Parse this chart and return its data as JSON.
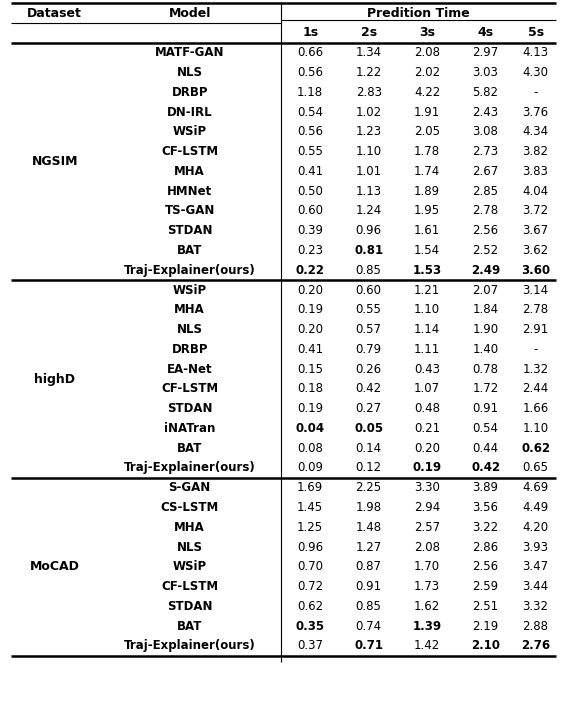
{
  "title": "Predition Time",
  "col_headers": [
    "1s",
    "2s",
    "3s",
    "4s",
    "5s"
  ],
  "datasets": [
    {
      "name": "NGSIM",
      "rows": [
        {
          "model": "MATF-GAN",
          "vals": [
            "0.66",
            "1.34",
            "2.08",
            "2.97",
            "4.13"
          ],
          "bold": [
            false,
            false,
            false,
            false,
            false
          ]
        },
        {
          "model": "NLS",
          "vals": [
            "0.56",
            "1.22",
            "2.02",
            "3.03",
            "4.30"
          ],
          "bold": [
            false,
            false,
            false,
            false,
            false
          ]
        },
        {
          "model": "DRBP",
          "vals": [
            "1.18",
            "2.83",
            "4.22",
            "5.82",
            "-"
          ],
          "bold": [
            false,
            false,
            false,
            false,
            false
          ]
        },
        {
          "model": "DN-IRL",
          "vals": [
            "0.54",
            "1.02",
            "1.91",
            "2.43",
            "3.76"
          ],
          "bold": [
            false,
            false,
            false,
            false,
            false
          ]
        },
        {
          "model": "WSiP",
          "vals": [
            "0.56",
            "1.23",
            "2.05",
            "3.08",
            "4.34"
          ],
          "bold": [
            false,
            false,
            false,
            false,
            false
          ]
        },
        {
          "model": "CF-LSTM",
          "vals": [
            "0.55",
            "1.10",
            "1.78",
            "2.73",
            "3.82"
          ],
          "bold": [
            false,
            false,
            false,
            false,
            false
          ]
        },
        {
          "model": "MHA",
          "vals": [
            "0.41",
            "1.01",
            "1.74",
            "2.67",
            "3.83"
          ],
          "bold": [
            false,
            false,
            false,
            false,
            false
          ]
        },
        {
          "model": "HMNet",
          "vals": [
            "0.50",
            "1.13",
            "1.89",
            "2.85",
            "4.04"
          ],
          "bold": [
            false,
            false,
            false,
            false,
            false
          ]
        },
        {
          "model": "TS-GAN",
          "vals": [
            "0.60",
            "1.24",
            "1.95",
            "2.78",
            "3.72"
          ],
          "bold": [
            false,
            false,
            false,
            false,
            false
          ]
        },
        {
          "model": "STDAN",
          "vals": [
            "0.39",
            "0.96",
            "1.61",
            "2.56",
            "3.67"
          ],
          "bold": [
            false,
            false,
            false,
            false,
            false
          ]
        },
        {
          "model": "BAT",
          "vals": [
            "0.23",
            "0.81",
            "1.54",
            "2.52",
            "3.62"
          ],
          "bold": [
            false,
            true,
            false,
            false,
            false
          ]
        },
        {
          "model": "Traj-Explainer(ours)",
          "vals": [
            "0.22",
            "0.85",
            "1.53",
            "2.49",
            "3.60"
          ],
          "bold": [
            true,
            false,
            true,
            true,
            true
          ]
        }
      ]
    },
    {
      "name": "highD",
      "rows": [
        {
          "model": "WSiP",
          "vals": [
            "0.20",
            "0.60",
            "1.21",
            "2.07",
            "3.14"
          ],
          "bold": [
            false,
            false,
            false,
            false,
            false
          ]
        },
        {
          "model": "MHA",
          "vals": [
            "0.19",
            "0.55",
            "1.10",
            "1.84",
            "2.78"
          ],
          "bold": [
            false,
            false,
            false,
            false,
            false
          ]
        },
        {
          "model": "NLS",
          "vals": [
            "0.20",
            "0.57",
            "1.14",
            "1.90",
            "2.91"
          ],
          "bold": [
            false,
            false,
            false,
            false,
            false
          ]
        },
        {
          "model": "DRBP",
          "vals": [
            "0.41",
            "0.79",
            "1.11",
            "1.40",
            "-"
          ],
          "bold": [
            false,
            false,
            false,
            false,
            false
          ]
        },
        {
          "model": "EA-Net",
          "vals": [
            "0.15",
            "0.26",
            "0.43",
            "0.78",
            "1.32"
          ],
          "bold": [
            false,
            false,
            false,
            false,
            false
          ]
        },
        {
          "model": "CF-LSTM",
          "vals": [
            "0.18",
            "0.42",
            "1.07",
            "1.72",
            "2.44"
          ],
          "bold": [
            false,
            false,
            false,
            false,
            false
          ]
        },
        {
          "model": "STDAN",
          "vals": [
            "0.19",
            "0.27",
            "0.48",
            "0.91",
            "1.66"
          ],
          "bold": [
            false,
            false,
            false,
            false,
            false
          ]
        },
        {
          "model": "iNATran",
          "vals": [
            "0.04",
            "0.05",
            "0.21",
            "0.54",
            "1.10"
          ],
          "bold": [
            true,
            true,
            false,
            false,
            false
          ]
        },
        {
          "model": "BAT",
          "vals": [
            "0.08",
            "0.14",
            "0.20",
            "0.44",
            "0.62"
          ],
          "bold": [
            false,
            false,
            false,
            false,
            true
          ]
        },
        {
          "model": "Traj-Explainer(ours)",
          "vals": [
            "0.09",
            "0.12",
            "0.19",
            "0.42",
            "0.65"
          ],
          "bold": [
            false,
            false,
            true,
            true,
            false
          ]
        }
      ]
    },
    {
      "name": "MoCAD",
      "rows": [
        {
          "model": "S-GAN",
          "vals": [
            "1.69",
            "2.25",
            "3.30",
            "3.89",
            "4.69"
          ],
          "bold": [
            false,
            false,
            false,
            false,
            false
          ]
        },
        {
          "model": "CS-LSTM",
          "vals": [
            "1.45",
            "1.98",
            "2.94",
            "3.56",
            "4.49"
          ],
          "bold": [
            false,
            false,
            false,
            false,
            false
          ]
        },
        {
          "model": "MHA",
          "vals": [
            "1.25",
            "1.48",
            "2.57",
            "3.22",
            "4.20"
          ],
          "bold": [
            false,
            false,
            false,
            false,
            false
          ]
        },
        {
          "model": "NLS",
          "vals": [
            "0.96",
            "1.27",
            "2.08",
            "2.86",
            "3.93"
          ],
          "bold": [
            false,
            false,
            false,
            false,
            false
          ]
        },
        {
          "model": "WSiP",
          "vals": [
            "0.70",
            "0.87",
            "1.70",
            "2.56",
            "3.47"
          ],
          "bold": [
            false,
            false,
            false,
            false,
            false
          ]
        },
        {
          "model": "CF-LSTM",
          "vals": [
            "0.72",
            "0.91",
            "1.73",
            "2.59",
            "3.44"
          ],
          "bold": [
            false,
            false,
            false,
            false,
            false
          ]
        },
        {
          "model": "STDAN",
          "vals": [
            "0.62",
            "0.85",
            "1.62",
            "2.51",
            "3.32"
          ],
          "bold": [
            false,
            false,
            false,
            false,
            false
          ]
        },
        {
          "model": "BAT",
          "vals": [
            "0.35",
            "0.74",
            "1.39",
            "2.19",
            "2.88"
          ],
          "bold": [
            true,
            false,
            true,
            false,
            false
          ]
        },
        {
          "model": "Traj-Explainer(ours)",
          "vals": [
            "0.37",
            "0.71",
            "1.42",
            "2.10",
            "2.76"
          ],
          "bold": [
            false,
            true,
            false,
            true,
            true
          ]
        }
      ]
    }
  ],
  "bg_color": "#ffffff",
  "line_color": "#000000",
  "thick_lw": 1.8,
  "thin_lw": 0.8,
  "header_fontsize": 9,
  "data_fontsize": 8.5,
  "dataset_fontsize": 9
}
